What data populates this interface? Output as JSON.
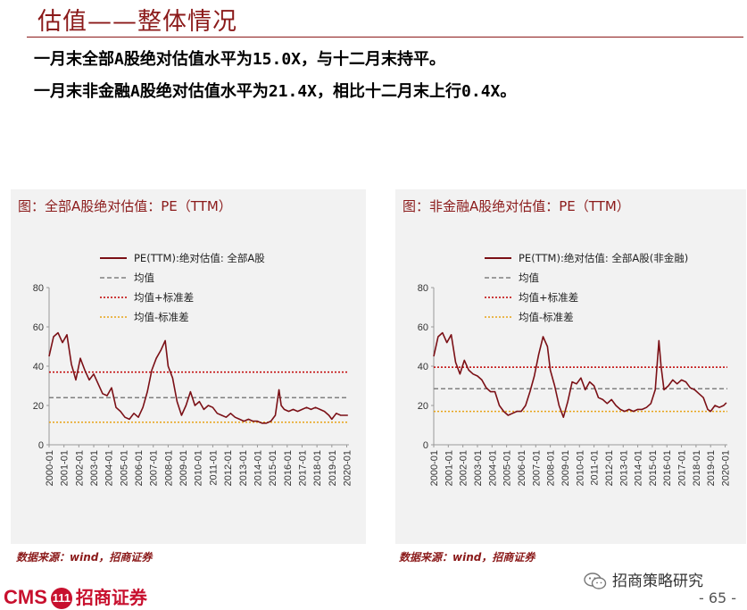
{
  "header": {
    "title": "估值——整体情况",
    "bullets": [
      "一月末全部A股绝对估值水平为15.0X，与十二月末持平。",
      "一月末非金融A股绝对估值水平为21.4X，相比十二月末上行0.4X。"
    ]
  },
  "colors": {
    "accent": "#8b1a1a",
    "series": "#7b1016",
    "mean": "#808080",
    "plus_std": "#c00000",
    "minus_std": "#e8a317"
  },
  "chart_data": [
    {
      "type": "line",
      "panel_title": "图：全部A股绝对估值：PE（TTM）",
      "legend": [
        "PE(TTM):绝对估值: 全部A股",
        "均值",
        "均值+标准差",
        "均值-标准差"
      ],
      "ylim": [
        0,
        80
      ],
      "yticks": [
        "0",
        "20",
        "40",
        "60",
        "80"
      ],
      "xticks": [
        "2000-01",
        "2001-01",
        "2002-01",
        "2003-01",
        "2004-01",
        "2005-01",
        "2006-01",
        "2007-01",
        "2008-01",
        "2009-01",
        "2010-01",
        "2011-01",
        "2012-01",
        "2013-01",
        "2014-01",
        "2015-01",
        "2016-01",
        "2017-01",
        "2018-01",
        "2019-01",
        "2020-01"
      ],
      "x": [
        2000.0,
        2000.3,
        2000.6,
        2000.9,
        2001.2,
        2001.5,
        2001.8,
        2002.1,
        2002.4,
        2002.7,
        2003.0,
        2003.3,
        2003.6,
        2003.9,
        2004.2,
        2004.5,
        2004.8,
        2005.1,
        2005.4,
        2005.7,
        2006.0,
        2006.3,
        2006.6,
        2006.9,
        2007.2,
        2007.5,
        2007.8,
        2008.0,
        2008.3,
        2008.6,
        2008.9,
        2009.2,
        2009.5,
        2009.8,
        2010.1,
        2010.4,
        2010.7,
        2011.0,
        2011.3,
        2011.6,
        2011.9,
        2012.2,
        2012.5,
        2012.8,
        2013.1,
        2013.4,
        2013.7,
        2014.0,
        2014.3,
        2014.6,
        2014.9,
        2015.2,
        2015.45,
        2015.6,
        2015.8,
        2016.1,
        2016.4,
        2016.7,
        2017.0,
        2017.3,
        2017.6,
        2017.9,
        2018.2,
        2018.5,
        2018.8,
        2019.0,
        2019.3,
        2019.6,
        2019.9,
        2020.08
      ],
      "values": [
        45,
        55,
        57,
        52,
        56,
        41,
        33,
        44,
        38,
        33,
        36,
        31,
        26,
        25,
        29,
        19,
        17,
        14,
        13,
        16,
        14,
        19,
        27,
        38,
        44,
        48,
        53,
        40,
        34,
        22,
        15,
        20,
        27,
        20,
        22,
        18,
        20,
        19,
        16,
        15,
        14,
        16,
        14,
        13,
        12,
        13,
        12,
        12,
        11,
        11,
        12,
        15,
        28,
        20,
        18,
        17,
        18,
        17,
        18,
        19,
        18,
        19,
        18,
        17,
        15,
        13,
        16,
        15,
        15,
        15
      ],
      "mean": 24,
      "mean_plus_std": 37,
      "mean_minus_std": 11.5
    },
    {
      "type": "line",
      "panel_title": "图：非金融A股绝对估值：PE（TTM）",
      "legend": [
        "PE(TTM):绝对估值: 全部A股(非金融)",
        "均值",
        "均值+标准差",
        "均值-标准差"
      ],
      "ylim": [
        0,
        80
      ],
      "yticks": [
        "0",
        "20",
        "40",
        "60",
        "80"
      ],
      "xticks": [
        "2000-01",
        "2001-01",
        "2002-01",
        "2003-01",
        "2004-01",
        "2005-01",
        "2006-01",
        "2007-01",
        "2008-01",
        "2009-01",
        "2010-01",
        "2011-01",
        "2012-01",
        "2013-01",
        "2014-01",
        "2015-01",
        "2016-01",
        "2017-01",
        "2018-01",
        "2019-01",
        "2020-01"
      ],
      "x": [
        2000.0,
        2000.3,
        2000.6,
        2000.9,
        2001.2,
        2001.5,
        2001.8,
        2002.1,
        2002.4,
        2002.7,
        2003.0,
        2003.3,
        2003.6,
        2003.9,
        2004.2,
        2004.5,
        2004.8,
        2005.1,
        2005.4,
        2005.7,
        2006.0,
        2006.3,
        2006.6,
        2006.9,
        2007.2,
        2007.5,
        2007.8,
        2008.0,
        2008.3,
        2008.6,
        2008.9,
        2009.2,
        2009.5,
        2009.8,
        2010.1,
        2010.4,
        2010.7,
        2011.0,
        2011.3,
        2011.6,
        2011.9,
        2012.2,
        2012.5,
        2012.8,
        2013.1,
        2013.4,
        2013.7,
        2014.0,
        2014.3,
        2014.6,
        2014.9,
        2015.2,
        2015.45,
        2015.6,
        2015.8,
        2016.1,
        2016.4,
        2016.7,
        2017.0,
        2017.3,
        2017.6,
        2017.9,
        2018.2,
        2018.5,
        2018.8,
        2019.0,
        2019.3,
        2019.6,
        2019.9,
        2020.08
      ],
      "values": [
        45,
        55,
        57,
        52,
        56,
        42,
        36,
        43,
        38,
        36,
        35,
        33,
        29,
        27,
        27,
        20,
        17,
        15,
        16,
        17,
        17,
        20,
        27,
        35,
        46,
        55,
        50,
        38,
        30,
        20,
        14,
        22,
        32,
        31,
        34,
        28,
        32,
        30,
        24,
        23,
        21,
        23,
        20,
        18,
        17,
        18,
        17,
        18,
        18,
        19,
        21,
        28,
        53,
        40,
        28,
        30,
        33,
        31,
        33,
        32,
        29,
        28,
        26,
        24,
        18,
        17,
        20,
        19,
        20,
        21.4
      ],
      "mean": 28.5,
      "mean_plus_std": 39.5,
      "mean_minus_std": 17
    }
  ],
  "footer": {
    "source_left": "数据来源：wind，招商证券",
    "source_right": "数据来源：wind，招商证券",
    "logo_text": "CMS",
    "logo_circle": "111",
    "logo_cn": "招商证券",
    "wechat": "招商策略研究",
    "page": "- 65 -"
  }
}
